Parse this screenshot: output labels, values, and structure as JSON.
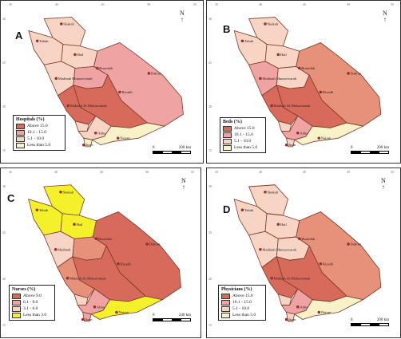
{
  "colors": {
    "high": "#d86a5c",
    "mid": "#f0a3a3",
    "low": "#f7d4c4",
    "vlow": "#f9f2c8",
    "yellow": "#f4f02a",
    "border": "#7a3b2a"
  },
  "ticks": {
    "top": [
      "35",
      "40",
      "45",
      "50",
      "55"
    ],
    "side": [
      "30",
      "25",
      "20",
      "15"
    ]
  },
  "panels": [
    {
      "letter": "A",
      "legend_title": "Hospitals (%)",
      "legend": [
        "Above 15.0",
        "10.1 - 15.0",
        "5.1 - 10.0",
        "Less than 5.0"
      ],
      "legend_colors": [
        "#d86a5c",
        "#f0a3a3",
        "#f7d4c4",
        "#f9f2c8"
      ],
      "scale_label": "200 km",
      "scale_zero": "0",
      "north": "N",
      "cities": [
        "Skakah",
        "Tabuk",
        "Hail",
        "Madinah Munawwarah",
        "Buraidah",
        "Dahran",
        "Riyadh",
        "Makkah Al-Mukarramah",
        "Abha",
        "Jizan",
        "Najran"
      ],
      "fills": {
        "north": "#f7d4c4",
        "tabuk": "#f7d4c4",
        "hail": "#f7d4c4",
        "madinah": "#f7d4c4",
        "qassim": "#f0a3a3",
        "east": "#f0a3a3",
        "riyadh": "#d86a5c",
        "makkah": "#d86a5c",
        "baha": "#f7d4c4",
        "asir": "#f7d4c4",
        "jizan": "#f9f2c8",
        "najran": "#f9f2c8"
      }
    },
    {
      "letter": "B",
      "legend_title": "Beds (%)",
      "legend": [
        "Above 15.0",
        "10.1 - 15.0",
        "5.1 - 10.0",
        "Less than 5.0"
      ],
      "legend_colors": [
        "#d86a5c",
        "#f0a3a3",
        "#f7d4c4",
        "#f9f2c8"
      ],
      "scale_label": "200 km",
      "scale_zero": "0",
      "north": "N",
      "cities": [
        "Skakah",
        "Tabuk",
        "Hail",
        "Madinah Munawwarah",
        "Buraidah",
        "Dahran",
        "Riyadh",
        "Makkah Al-Mukarramah",
        "Abha",
        "Jizan",
        "Najran"
      ],
      "fills": {
        "north": "#f7d4c4",
        "tabuk": "#f7d4c4",
        "hail": "#f7d4c4",
        "madinah": "#f0a3a3",
        "qassim": "#f7d4c4",
        "east": "#e8917a",
        "riyadh": "#d86a5c",
        "makkah": "#d86a5c",
        "baha": "#f7d4c4",
        "asir": "#f0a3a3",
        "jizan": "#f7d4c4",
        "najran": "#f9f2c8"
      }
    },
    {
      "letter": "C",
      "legend_title": "Nurses (%)",
      "legend": [
        "Above 9.0",
        "6.1 - 9.0",
        "3.1 - 6.0",
        "Less than 3.0"
      ],
      "legend_colors": [
        "#d86a5c",
        "#f0a3a3",
        "#f7d4c4",
        "#f4f02a"
      ],
      "scale_label": "240 km",
      "scale_zero": "0",
      "north": "N",
      "cities": [
        "Skakah",
        "Tabuk",
        "Hail",
        "Madinah",
        "Buraidah",
        "Dahran",
        "Riyadh",
        "Makkah Al-Mukarramah",
        "Abha",
        "Jizan",
        "Najran"
      ],
      "fills": {
        "north": "#f4f02a",
        "tabuk": "#f4f02a",
        "hail": "#f4f02a",
        "madinah": "#f7d4c4",
        "qassim": "#e8917a",
        "east": "#d86a5c",
        "riyadh": "#d86a5c",
        "makkah": "#e8917a",
        "baha": "#f7d4c4",
        "asir": "#f0a3a3",
        "jizan": "#f0a3a3",
        "najran": "#f4f02a"
      }
    },
    {
      "letter": "D",
      "legend_title": "Physicians (%)",
      "legend": [
        "Above 15.0",
        "10.1 - 15.0",
        "5.1 - 10.0",
        "Less than 5.0"
      ],
      "legend_colors": [
        "#d86a5c",
        "#f0a3a3",
        "#f7d4c4",
        "#f9f2c8"
      ],
      "scale_label": "200 km",
      "scale_zero": "0",
      "north": "N",
      "cities": [
        "Skakah",
        "Tabuk",
        "Hail",
        "Madinah Munawwarah",
        "Buraidah",
        "Dahran",
        "Riyadh",
        "Makkah Al-Mukarramah",
        "Abha",
        "Jizan",
        "Najran"
      ],
      "fills": {
        "north": "#f7d4c4",
        "tabuk": "#f7d4c4",
        "hail": "#f7d4c4",
        "madinah": "#f7d4c4",
        "qassim": "#f7d4c4",
        "east": "#e8917a",
        "riyadh": "#d86a5c",
        "makkah": "#d86a5c",
        "baha": "#f7d4c4",
        "asir": "#f0a3a3",
        "jizan": "#f7d4c4",
        "najran": "#f9f2c8"
      }
    }
  ]
}
